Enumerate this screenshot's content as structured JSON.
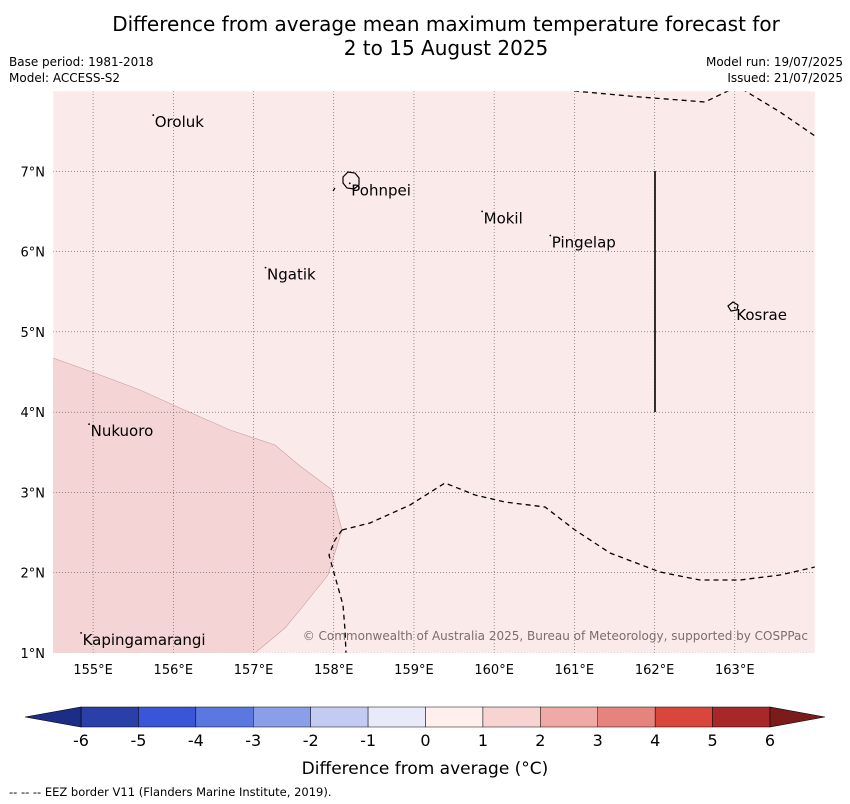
{
  "title": {
    "line1": "Difference from average mean maximum temperature forecast for",
    "line2": "2 to 15 August 2025"
  },
  "meta_left": {
    "base_period": "Base period: 1981-2018",
    "model": "Model: ACCESS-S2"
  },
  "meta_right": {
    "model_run": "Model run: 19/07/2025",
    "issued": "Issued: 21/07/2025"
  },
  "map": {
    "lon_ticks": [
      "155°E",
      "156°E",
      "157°E",
      "158°E",
      "159°E",
      "160°E",
      "161°E",
      "162°E",
      "163°E"
    ],
    "lat_ticks": [
      "7°N",
      "6°N",
      "5°N",
      "4°N",
      "3°N",
      "2°N",
      "1°N"
    ],
    "extent": {
      "lon": [
        154.5,
        164
      ],
      "lat": [
        1,
        8
      ]
    },
    "grid": true,
    "background_fill": "#fbeaea",
    "anomaly_fill": "#f4d4d4",
    "places": [
      {
        "name": "Oroluk",
        "lon": 155.75,
        "lat": 7.7
      },
      {
        "name": "Pohnpei",
        "lon": 158.2,
        "lat": 6.85
      },
      {
        "name": "Mokil",
        "lon": 159.85,
        "lat": 6.5
      },
      {
        "name": "Pingelap",
        "lon": 160.7,
        "lat": 6.2
      },
      {
        "name": "Ngatik",
        "lon": 157.15,
        "lat": 5.8
      },
      {
        "name": "Kosrae",
        "lon": 163.0,
        "lat": 5.3
      },
      {
        "name": "Nukuoro",
        "lon": 154.95,
        "lat": 3.85
      },
      {
        "name": "Kapingamarangi",
        "lon": 154.85,
        "lat": 1.25
      }
    ],
    "copyright": "© Commonwealth of Australia 2025, Bureau of Meteorology, supported by COSPPac"
  },
  "colorbar": {
    "ticks": [
      "-6",
      "-5",
      "-4",
      "-3",
      "-2",
      "-1",
      "0",
      "1",
      "2",
      "3",
      "4",
      "5",
      "6"
    ],
    "colors": [
      "#2a3fa8",
      "#3b55d9",
      "#5b77e0",
      "#8a9eea",
      "#c4cbf2",
      "#e8eaf9",
      "#fff0ee",
      "#f7d3d1",
      "#efaaa6",
      "#e6837d",
      "#d9463c",
      "#a8282a"
    ],
    "low_extend_color": "#1c2d86",
    "high_extend_color": "#7a1c1c",
    "label": "Difference from average (°C)"
  },
  "footer": "--  --  -- EEZ border V11 (Flanders Marine Institute, 2019)."
}
